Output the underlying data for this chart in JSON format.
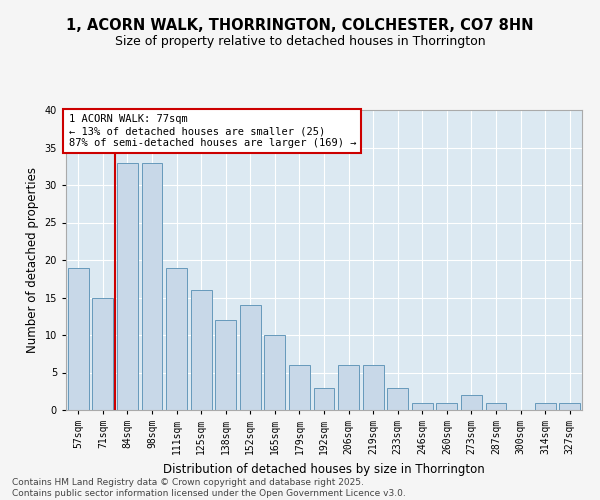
{
  "title": "1, ACORN WALK, THORRINGTON, COLCHESTER, CO7 8HN",
  "subtitle": "Size of property relative to detached houses in Thorrington",
  "xlabel": "Distribution of detached houses by size in Thorrington",
  "ylabel": "Number of detached properties",
  "categories": [
    "57sqm",
    "71sqm",
    "84sqm",
    "98sqm",
    "111sqm",
    "125sqm",
    "138sqm",
    "152sqm",
    "165sqm",
    "179sqm",
    "192sqm",
    "206sqm",
    "219sqm",
    "233sqm",
    "246sqm",
    "260sqm",
    "273sqm",
    "287sqm",
    "300sqm",
    "314sqm",
    "327sqm"
  ],
  "values": [
    19,
    15,
    33,
    33,
    19,
    16,
    12,
    14,
    10,
    6,
    3,
    6,
    6,
    3,
    1,
    1,
    2,
    1,
    0,
    1,
    1
  ],
  "bar_color": "#c8d8e8",
  "bar_edge_color": "#6699bb",
  "bar_edge_width": 0.7,
  "red_line_index": 1,
  "red_line_color": "#cc0000",
  "annotation_text": "1 ACORN WALK: 77sqm\n← 13% of detached houses are smaller (25)\n87% of semi-detached houses are larger (169) →",
  "annotation_box_color": "#ffffff",
  "annotation_box_edge": "#cc0000",
  "ylim": [
    0,
    40
  ],
  "yticks": [
    0,
    5,
    10,
    15,
    20,
    25,
    30,
    35,
    40
  ],
  "bg_color": "#dce9f2",
  "grid_color": "#ffffff",
  "fig_bg_color": "#f5f5f5",
  "footer_line1": "Contains HM Land Registry data © Crown copyright and database right 2025.",
  "footer_line2": "Contains public sector information licensed under the Open Government Licence v3.0.",
  "title_fontsize": 10.5,
  "subtitle_fontsize": 9,
  "xlabel_fontsize": 8.5,
  "ylabel_fontsize": 8.5,
  "tick_fontsize": 7,
  "footer_fontsize": 6.5,
  "annotation_fontsize": 7.5
}
